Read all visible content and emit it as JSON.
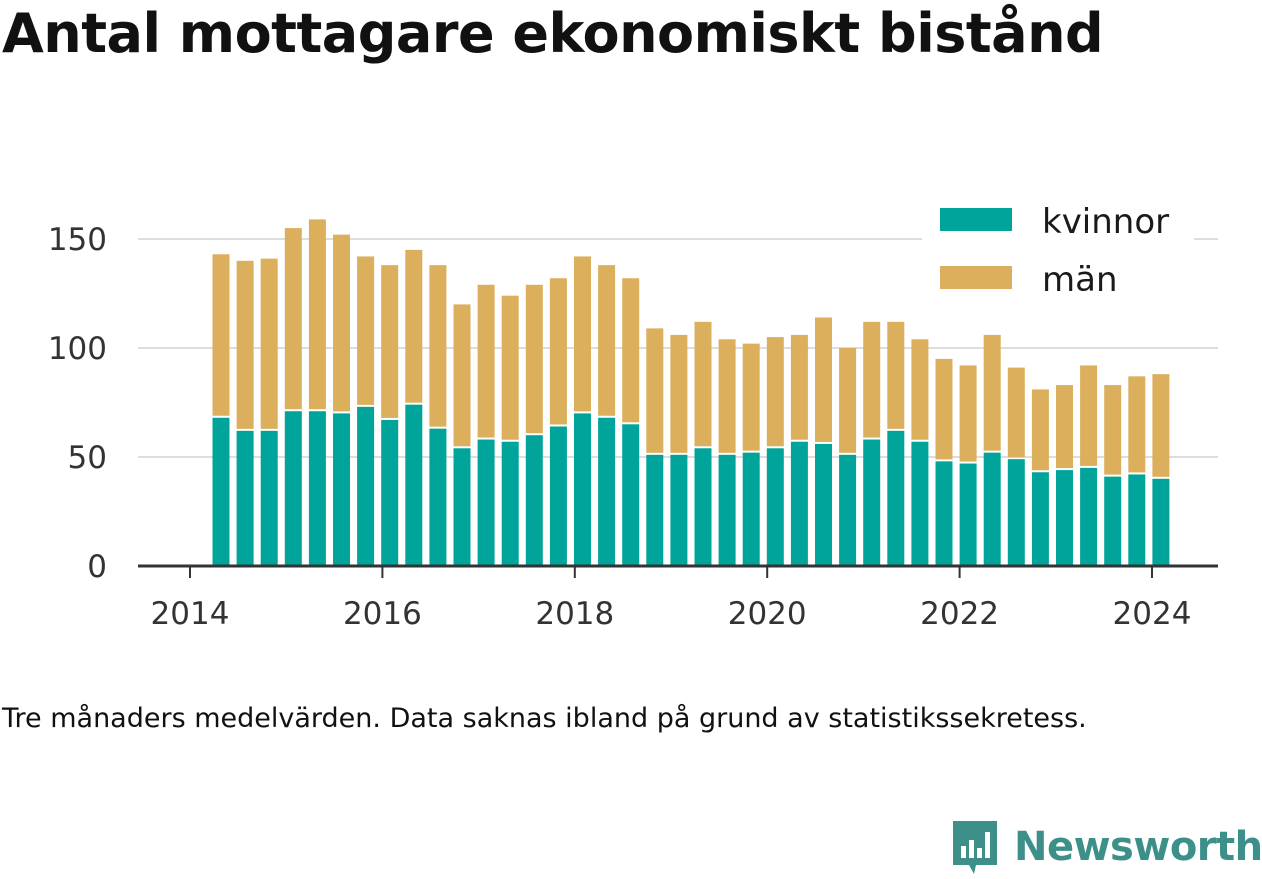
{
  "title": "Antal mottagare ekonomiskt bistånd",
  "note": "Tre månaders medelvärden. Data saknas ibland på grund av statistikssekretess.",
  "brand": {
    "name": "Newsworthy",
    "icon": "newsworthy-logo-icon",
    "color": "#3d8f8a"
  },
  "colors": {
    "kvinnor": "#00a49a",
    "man": "#dcaf5c",
    "grid": "#dddddd",
    "axis": "#333333"
  },
  "chart_data": {
    "type": "bar",
    "stacked": true,
    "ylim": [
      0,
      160
    ],
    "yticks": [
      0,
      50,
      100,
      150
    ],
    "xticks": [
      "2014",
      "2016",
      "2018",
      "2020",
      "2022",
      "2024"
    ],
    "grid": "horizontal",
    "legend_position": "top-right",
    "series": [
      {
        "name": "kvinnor",
        "values": [
          68,
          62,
          62,
          71,
          71,
          70,
          73,
          67,
          74,
          63,
          54,
          58,
          57,
          60,
          64,
          70,
          68,
          65,
          51,
          51,
          54,
          51,
          52,
          54,
          57,
          56,
          51,
          58,
          62,
          57,
          48,
          47,
          52,
          49,
          43,
          44,
          45,
          41,
          42,
          40
        ]
      },
      {
        "name": "män",
        "values": [
          75,
          78,
          79,
          84,
          88,
          82,
          69,
          71,
          71,
          75,
          66,
          71,
          67,
          69,
          68,
          72,
          70,
          67,
          58,
          55,
          58,
          53,
          50,
          51,
          49,
          58,
          49,
          54,
          50,
          47,
          47,
          45,
          54,
          42,
          38,
          39,
          47,
          42,
          45,
          48
        ]
      }
    ]
  }
}
